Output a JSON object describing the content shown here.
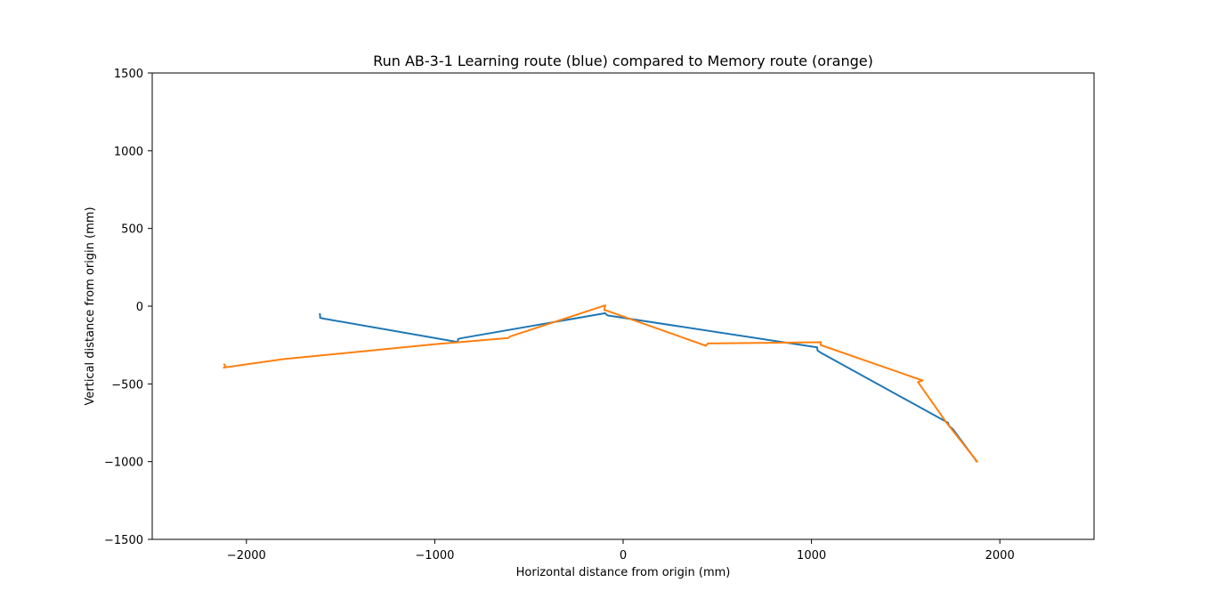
{
  "chart_data": {
    "type": "line",
    "title": "Run AB-3-1 Learning route (blue) compared to Memory route (orange)",
    "xlabel": "Horizontal distance from origin (mm)",
    "ylabel": "Vertical distance from origin (mm)",
    "xlim": [
      -2500,
      2500
    ],
    "ylim": [
      -1500,
      1500
    ],
    "x_ticks": [
      -2000,
      -1000,
      0,
      1000,
      2000
    ],
    "y_ticks": [
      -1500,
      -1000,
      -500,
      0,
      500,
      1000,
      1500
    ],
    "x_tick_labels": [
      "−2000",
      "−1000",
      "0",
      "1000",
      "2000"
    ],
    "y_tick_labels": [
      "−1500",
      "−1000",
      "−500",
      "0",
      "500",
      "1000",
      "1500"
    ],
    "grid": false,
    "legend": "none",
    "series": [
      {
        "color": "#1f77b4",
        "points": [
          [
            -1610,
            -45
          ],
          [
            -1608,
            -75
          ],
          [
            -1590,
            -80
          ],
          [
            -880,
            -230
          ],
          [
            -875,
            -210
          ],
          [
            -855,
            -205
          ],
          [
            -95,
            -45
          ],
          [
            -88,
            -55
          ],
          [
            -80,
            -60
          ],
          [
            1030,
            -265
          ],
          [
            1032,
            -285
          ],
          [
            1050,
            -300
          ],
          [
            1725,
            -750
          ],
          [
            1730,
            -770
          ],
          [
            1750,
            -790
          ],
          [
            1875,
            -995
          ]
        ]
      },
      {
        "color": "#ff7f0e",
        "points": [
          [
            -2120,
            -370
          ],
          [
            -2110,
            -390
          ],
          [
            -2120,
            -395
          ],
          [
            -1800,
            -340
          ],
          [
            -1000,
            -245
          ],
          [
            -610,
            -205
          ],
          [
            -600,
            -195
          ],
          [
            -95,
            5
          ],
          [
            -100,
            -25
          ],
          [
            -85,
            -30
          ],
          [
            440,
            -255
          ],
          [
            450,
            -240
          ],
          [
            1050,
            -232
          ],
          [
            1048,
            -250
          ],
          [
            1060,
            -255
          ],
          [
            1590,
            -478
          ],
          [
            1565,
            -488
          ],
          [
            1720,
            -755
          ],
          [
            1880,
            -1000
          ],
          [
            1870,
            -995
          ]
        ]
      }
    ]
  }
}
